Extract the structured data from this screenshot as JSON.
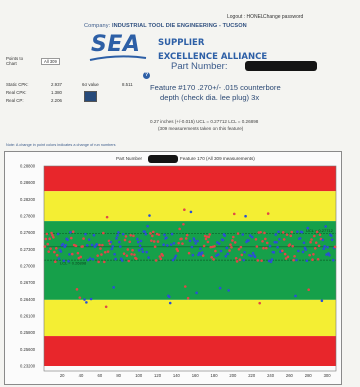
{
  "header": {
    "logout_label": "Logout : HONEL",
    "change_password_label": "Change password",
    "company_prefix": "Company:",
    "company_name": "INDUSTRIAL TOOL DIE ENGINEERING - TUCSON",
    "logo_main": "SEA",
    "logo_line1": "SUPPLIER",
    "logo_line2": "EXCELLENCE ALLIANCE",
    "part_number_label": "Part Number:"
  },
  "feature": {
    "line1": "Feature #170  .270+/- .015 counterbore",
    "line2": "depth (check dia. lee plug) 3x",
    "tolerance_line": "0.27 inches  (+/-0.015)   UCL = 0.27712   LCL = 0.26898",
    "measurement_line": "(309 measurements taken on this feature)"
  },
  "stats": {
    "points_label": "Points to",
    "chart_label": "Chart",
    "points_value": "All 309",
    "static_cpk_label": "Static CPK:",
    "static_cpk_value": "2.937",
    "real_cpk_label": "Real CPK:",
    "real_cpk_value": "1.380",
    "real_cp_label": "Real CP:",
    "real_cp_value": "2.206",
    "sd_label": "6σ value",
    "sd_value": "8.511",
    "swatch_color": "#274a7a"
  },
  "note": "Note: A change in point colors indicates a change of run numbers",
  "chart_data": {
    "type": "scatter",
    "title_prefix": "Part Number",
    "title_suffix": "Feature 170 (All 309 measurements)",
    "x_ticks": [
      "20",
      "40",
      "60",
      "80",
      "100",
      "120",
      "140",
      "160",
      "180",
      "200",
      "220",
      "240",
      "260",
      "280",
      "300"
    ],
    "y_ticks": [
      "0.28800",
      "0.28600",
      "0.28200",
      "0.27800",
      "0.27600",
      "0.27300",
      "0.27000",
      "0.26700",
      "0.26400",
      "0.26100",
      "0.25800",
      "0.25600",
      "0.23200"
    ],
    "xlim": [
      0,
      310
    ],
    "annotations": {
      "ucl_label": "UCL = 0.27712",
      "lcl_label": "LCL = 0.26898"
    },
    "colors": {
      "red": "#e8262b",
      "yellow": "#f4ee33",
      "green": "#16a04a",
      "point_red": "#e04848",
      "point_blue": "#2b4fd6"
    },
    "bands": [
      {
        "color": "red",
        "from": 0,
        "to": 1.6
      },
      {
        "color": "yellow",
        "from": 1.6,
        "to": 3.5
      },
      {
        "color": "green",
        "from": 3.5,
        "to": 8.5
      },
      {
        "color": "yellow",
        "from": 8.5,
        "to": 10.8
      },
      {
        "color": "red",
        "from": 10.8,
        "to": 12.7
      }
    ]
  }
}
